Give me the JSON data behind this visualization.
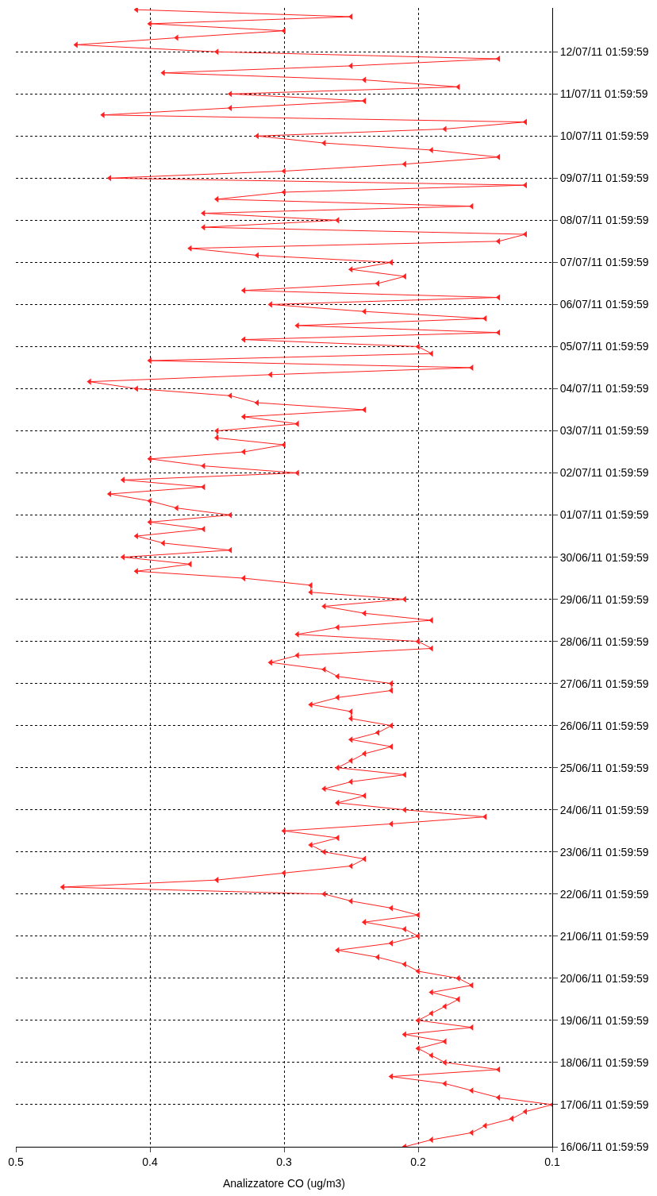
{
  "chart_data": {
    "type": "line",
    "orientation": "horizontal",
    "xlabel": "Analizzatore CO (ug/m3)",
    "xlim": [
      0.5,
      0.1
    ],
    "xticks": [
      0.5,
      0.4,
      0.3,
      0.2,
      0.1
    ],
    "ylim": [
      "--06-16T01:59",
      "--07-13T03:00"
    ],
    "yticks": [
      {
        "value": "--06-16T01:59",
        "label": "16/06/11 01:59:59"
      },
      {
        "value": "--06-17T01:59",
        "label": "17/06/11 01:59:59"
      },
      {
        "value": "--06-18T01:59",
        "label": "18/06/11 01:59:59"
      },
      {
        "value": "--06-19T01:59",
        "label": "19/06/11 01:59:59"
      },
      {
        "value": "--06-20T01:59",
        "label": "20/06/11 01:59:59"
      },
      {
        "value": "--06-21T01:59",
        "label": "21/06/11 01:59:59"
      },
      {
        "value": "--06-22T01:59",
        "label": "22/06/11 01:59:59"
      },
      {
        "value": "--06-23T01:59",
        "label": "23/06/11 01:59:59"
      },
      {
        "value": "--06-24T01:59",
        "label": "24/06/11 01:59:59"
      },
      {
        "value": "--06-25T01:59",
        "label": "25/06/11 01:59:59"
      },
      {
        "value": "--06-26T01:59",
        "label": "26/06/11 01:59:59"
      },
      {
        "value": "--06-27T01:59",
        "label": "27/06/11 01:59:59"
      },
      {
        "value": "--06-28T01:59",
        "label": "28/06/11 01:59:59"
      },
      {
        "value": "--06-29T01:59",
        "label": "29/06/11 01:59:59"
      },
      {
        "value": "--06-30T01:59",
        "label": "30/06/11 01:59:59"
      },
      {
        "value": "--07-01T01:59",
        "label": "01/07/11 01:59:59"
      },
      {
        "value": "--07-02T01:59",
        "label": "02/07/11 01:59:59"
      },
      {
        "value": "--07-03T01:59",
        "label": "03/07/11 01:59:59"
      },
      {
        "value": "--07-04T01:59",
        "label": "04/07/11 01:59:59"
      },
      {
        "value": "--07-05T01:59",
        "label": "05/07/11 01:59:59"
      },
      {
        "value": "--07-06T01:59",
        "label": "06/07/11 01:59:59"
      },
      {
        "value": "--07-07T01:59",
        "label": "07/07/11 01:59:59"
      },
      {
        "value": "--07-08T01:59",
        "label": "08/07/11 01:59:59"
      },
      {
        "value": "--07-09T01:59",
        "label": "09/07/11 01:59:59"
      },
      {
        "value": "--07-10T01:59",
        "label": "10/07/11 01:59:59"
      },
      {
        "value": "--07-11T01:59",
        "label": "11/07/11 01:59:59"
      },
      {
        "value": "--07-12T01:59",
        "label": "12/07/11 01:59:59"
      }
    ],
    "grid": true,
    "marker": "triangle",
    "line_style": "solid",
    "x": [
      "--06-16T02:00",
      "--06-16T06:00",
      "--06-16T10:00",
      "--06-16T14:00",
      "--06-16T18:00",
      "--06-16T22:00",
      "--06-17T02:00",
      "--06-17T06:00",
      "--06-17T10:00",
      "--06-17T14:00",
      "--06-17T18:00",
      "--06-17T22:00",
      "--06-18T02:00",
      "--06-18T06:00",
      "--06-18T10:00",
      "--06-18T14:00",
      "--06-18T18:00",
      "--06-18T22:00",
      "--06-19T02:00",
      "--06-19T06:00",
      "--06-19T10:00",
      "--06-19T14:00",
      "--06-19T18:00",
      "--06-19T22:00",
      "--06-20T02:00",
      "--06-20T06:00",
      "--06-20T10:00",
      "--06-20T14:00",
      "--06-20T18:00",
      "--06-20T22:00",
      "--06-21T02:00",
      "--06-21T06:00",
      "--06-21T10:00",
      "--06-21T14:00",
      "--06-21T18:00",
      "--06-21T22:00",
      "--06-22T02:00",
      "--06-22T06:00",
      "--06-22T10:00",
      "--06-22T14:00",
      "--06-22T18:00",
      "--06-22T22:00",
      "--06-23T02:00",
      "--06-23T06:00",
      "--06-23T10:00",
      "--06-23T14:00",
      "--06-23T18:00",
      "--06-23T22:00",
      "--06-24T02:00",
      "--06-24T06:00",
      "--06-24T10:00",
      "--06-24T14:00",
      "--06-24T18:00",
      "--06-24T22:00",
      "--06-25T02:00",
      "--06-25T06:00",
      "--06-25T10:00",
      "--06-25T14:00",
      "--06-25T18:00",
      "--06-25T22:00",
      "--06-26T02:00",
      "--06-26T06:00",
      "--06-26T10:00",
      "--06-26T14:00",
      "--06-26T18:00",
      "--06-26T22:00",
      "--06-27T02:00",
      "--06-27T06:00",
      "--06-27T10:00",
      "--06-27T14:00",
      "--06-27T18:00",
      "--06-27T22:00",
      "--06-28T02:00",
      "--06-28T06:00",
      "--06-28T10:00",
      "--06-28T14:00",
      "--06-28T18:00",
      "--06-28T22:00",
      "--06-29T02:00",
      "--06-29T06:00",
      "--06-29T10:00",
      "--06-29T14:00",
      "--06-29T18:00",
      "--06-29T22:00",
      "--06-30T02:00",
      "--06-30T06:00",
      "--06-30T10:00",
      "--06-30T14:00",
      "--06-30T18:00",
      "--06-30T22:00",
      "--07-01T02:00",
      "--07-01T06:00",
      "--07-01T10:00",
      "--07-01T14:00",
      "--07-01T18:00",
      "--07-01T22:00",
      "--07-02T02:00",
      "--07-02T06:00",
      "--07-02T10:00",
      "--07-02T14:00",
      "--07-02T18:00",
      "--07-02T22:00",
      "--07-03T02:00",
      "--07-03T06:00",
      "--07-03T10:00",
      "--07-03T14:00",
      "--07-03T18:00",
      "--07-03T22:00",
      "--07-04T02:00",
      "--07-04T06:00",
      "--07-04T10:00",
      "--07-04T14:00",
      "--07-04T18:00",
      "--07-04T22:00",
      "--07-05T02:00",
      "--07-05T06:00",
      "--07-05T10:00",
      "--07-05T14:00",
      "--07-05T18:00",
      "--07-05T22:00",
      "--07-06T02:00",
      "--07-06T06:00",
      "--07-06T10:00",
      "--07-06T14:00",
      "--07-06T18:00",
      "--07-06T22:00",
      "--07-07T02:00",
      "--07-07T06:00",
      "--07-07T10:00",
      "--07-07T14:00",
      "--07-07T18:00",
      "--07-07T22:00",
      "--07-08T02:00",
      "--07-08T06:00",
      "--07-08T10:00",
      "--07-08T14:00",
      "--07-08T18:00",
      "--07-08T22:00",
      "--07-09T02:00",
      "--07-09T06:00",
      "--07-09T10:00",
      "--07-09T14:00",
      "--07-09T18:00",
      "--07-09T22:00",
      "--07-10T02:00",
      "--07-10T06:00",
      "--07-10T10:00",
      "--07-10T14:00",
      "--07-10T18:00",
      "--07-10T22:00",
      "--07-11T02:00",
      "--07-11T06:00",
      "--07-11T10:00",
      "--07-11T14:00",
      "--07-11T18:00",
      "--07-11T22:00",
      "--07-12T02:00",
      "--07-12T06:00",
      "--07-12T10:00",
      "--07-12T14:00",
      "--07-12T18:00",
      "--07-12T22:00",
      "--07-13T02:00"
    ],
    "series": [
      {
        "color": "#ff2020",
        "values": [
          0.21,
          0.19,
          0.16,
          0.15,
          0.13,
          0.12,
          0.1,
          0.14,
          0.16,
          0.18,
          0.22,
          0.14,
          0.18,
          0.19,
          0.2,
          0.18,
          0.21,
          0.16,
          0.2,
          0.19,
          0.18,
          0.17,
          0.19,
          0.16,
          0.17,
          0.2,
          0.21,
          0.23,
          0.26,
          0.22,
          0.2,
          0.21,
          0.24,
          0.2,
          0.22,
          0.25,
          0.27,
          0.465,
          0.35,
          0.3,
          0.25,
          0.24,
          0.27,
          0.28,
          0.26,
          0.3,
          0.22,
          0.15,
          0.21,
          0.26,
          0.24,
          0.27,
          0.25,
          0.21,
          0.26,
          0.25,
          0.24,
          0.22,
          0.25,
          0.23,
          0.22,
          0.25,
          0.25,
          0.28,
          0.26,
          0.22,
          0.22,
          0.26,
          0.27,
          0.31,
          0.29,
          0.19,
          0.2,
          0.29,
          0.26,
          0.19,
          0.24,
          0.27,
          0.21,
          0.28,
          0.28,
          0.33,
          0.41,
          0.37,
          0.42,
          0.34,
          0.39,
          0.41,
          0.36,
          0.4,
          0.34,
          0.38,
          0.4,
          0.43,
          0.36,
          0.42,
          0.29,
          0.36,
          0.4,
          0.33,
          0.3,
          0.35,
          0.35,
          0.29,
          0.33,
          0.24,
          0.32,
          0.34,
          0.41,
          0.445,
          0.31,
          0.16,
          0.4,
          0.19,
          0.2,
          0.33,
          0.14,
          0.29,
          0.15,
          0.24,
          0.31,
          0.14,
          0.33,
          0.23,
          0.21,
          0.25,
          0.22,
          0.32,
          0.37,
          0.14,
          0.12,
          0.36,
          0.26,
          0.36,
          0.16,
          0.35,
          0.3,
          0.12,
          0.43,
          0.3,
          0.21,
          0.14,
          0.19,
          0.27,
          0.32,
          0.18,
          0.12,
          0.435,
          0.34,
          0.24,
          0.34,
          0.17,
          0.24,
          0.39,
          0.25,
          0.14,
          0.35,
          0.455,
          0.38,
          0.3,
          0.4,
          0.25,
          0.41
        ]
      }
    ]
  }
}
